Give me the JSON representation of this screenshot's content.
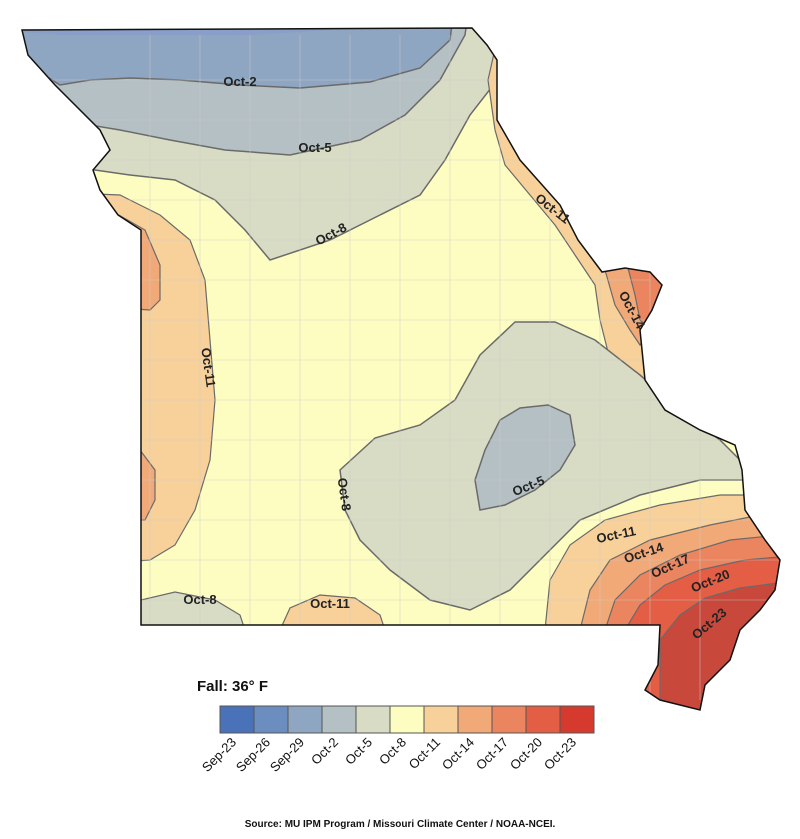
{
  "legend": {
    "title": "Fall: 36° F",
    "classes": [
      {
        "label": "Sep-23",
        "color": "#4a72b8"
      },
      {
        "label": "Sep-26",
        "color": "#6b8dbf"
      },
      {
        "label": "Sep-29",
        "color": "#8fa6c2"
      },
      {
        "label": "Oct-2",
        "color": "#b4c0c4"
      },
      {
        "label": "Oct-5",
        "color": "#d9dcc4"
      },
      {
        "label": "Oct-8",
        "color": "#fdfdc2"
      },
      {
        "label": "Oct-11",
        "color": "#f8d19a"
      },
      {
        "label": "Oct-14",
        "color": "#f1a977"
      },
      {
        "label": "Oct-17",
        "color": "#ea8560"
      },
      {
        "label": "Oct-20",
        "color": "#e35e45"
      },
      {
        "label": "Oct-23",
        "color": "#d63a2f"
      }
    ]
  },
  "contour_labels": [
    {
      "text": "Oct-2"
    },
    {
      "text": "Oct-5"
    },
    {
      "text": "Oct-8"
    },
    {
      "text": "Oct-11"
    },
    {
      "text": "Oct-14"
    },
    {
      "text": "Oct-11"
    },
    {
      "text": "Oct-8"
    },
    {
      "text": "Oct-5"
    },
    {
      "text": "Oct-8"
    },
    {
      "text": "Oct-11"
    },
    {
      "text": "Oct-11"
    },
    {
      "text": "Oct-14"
    },
    {
      "text": "Oct-17"
    },
    {
      "text": "Oct-20"
    },
    {
      "text": "Oct-23"
    }
  ],
  "source": "Source: MU IPM Program / Missouri Climate Center / NOAA-NCEI."
}
